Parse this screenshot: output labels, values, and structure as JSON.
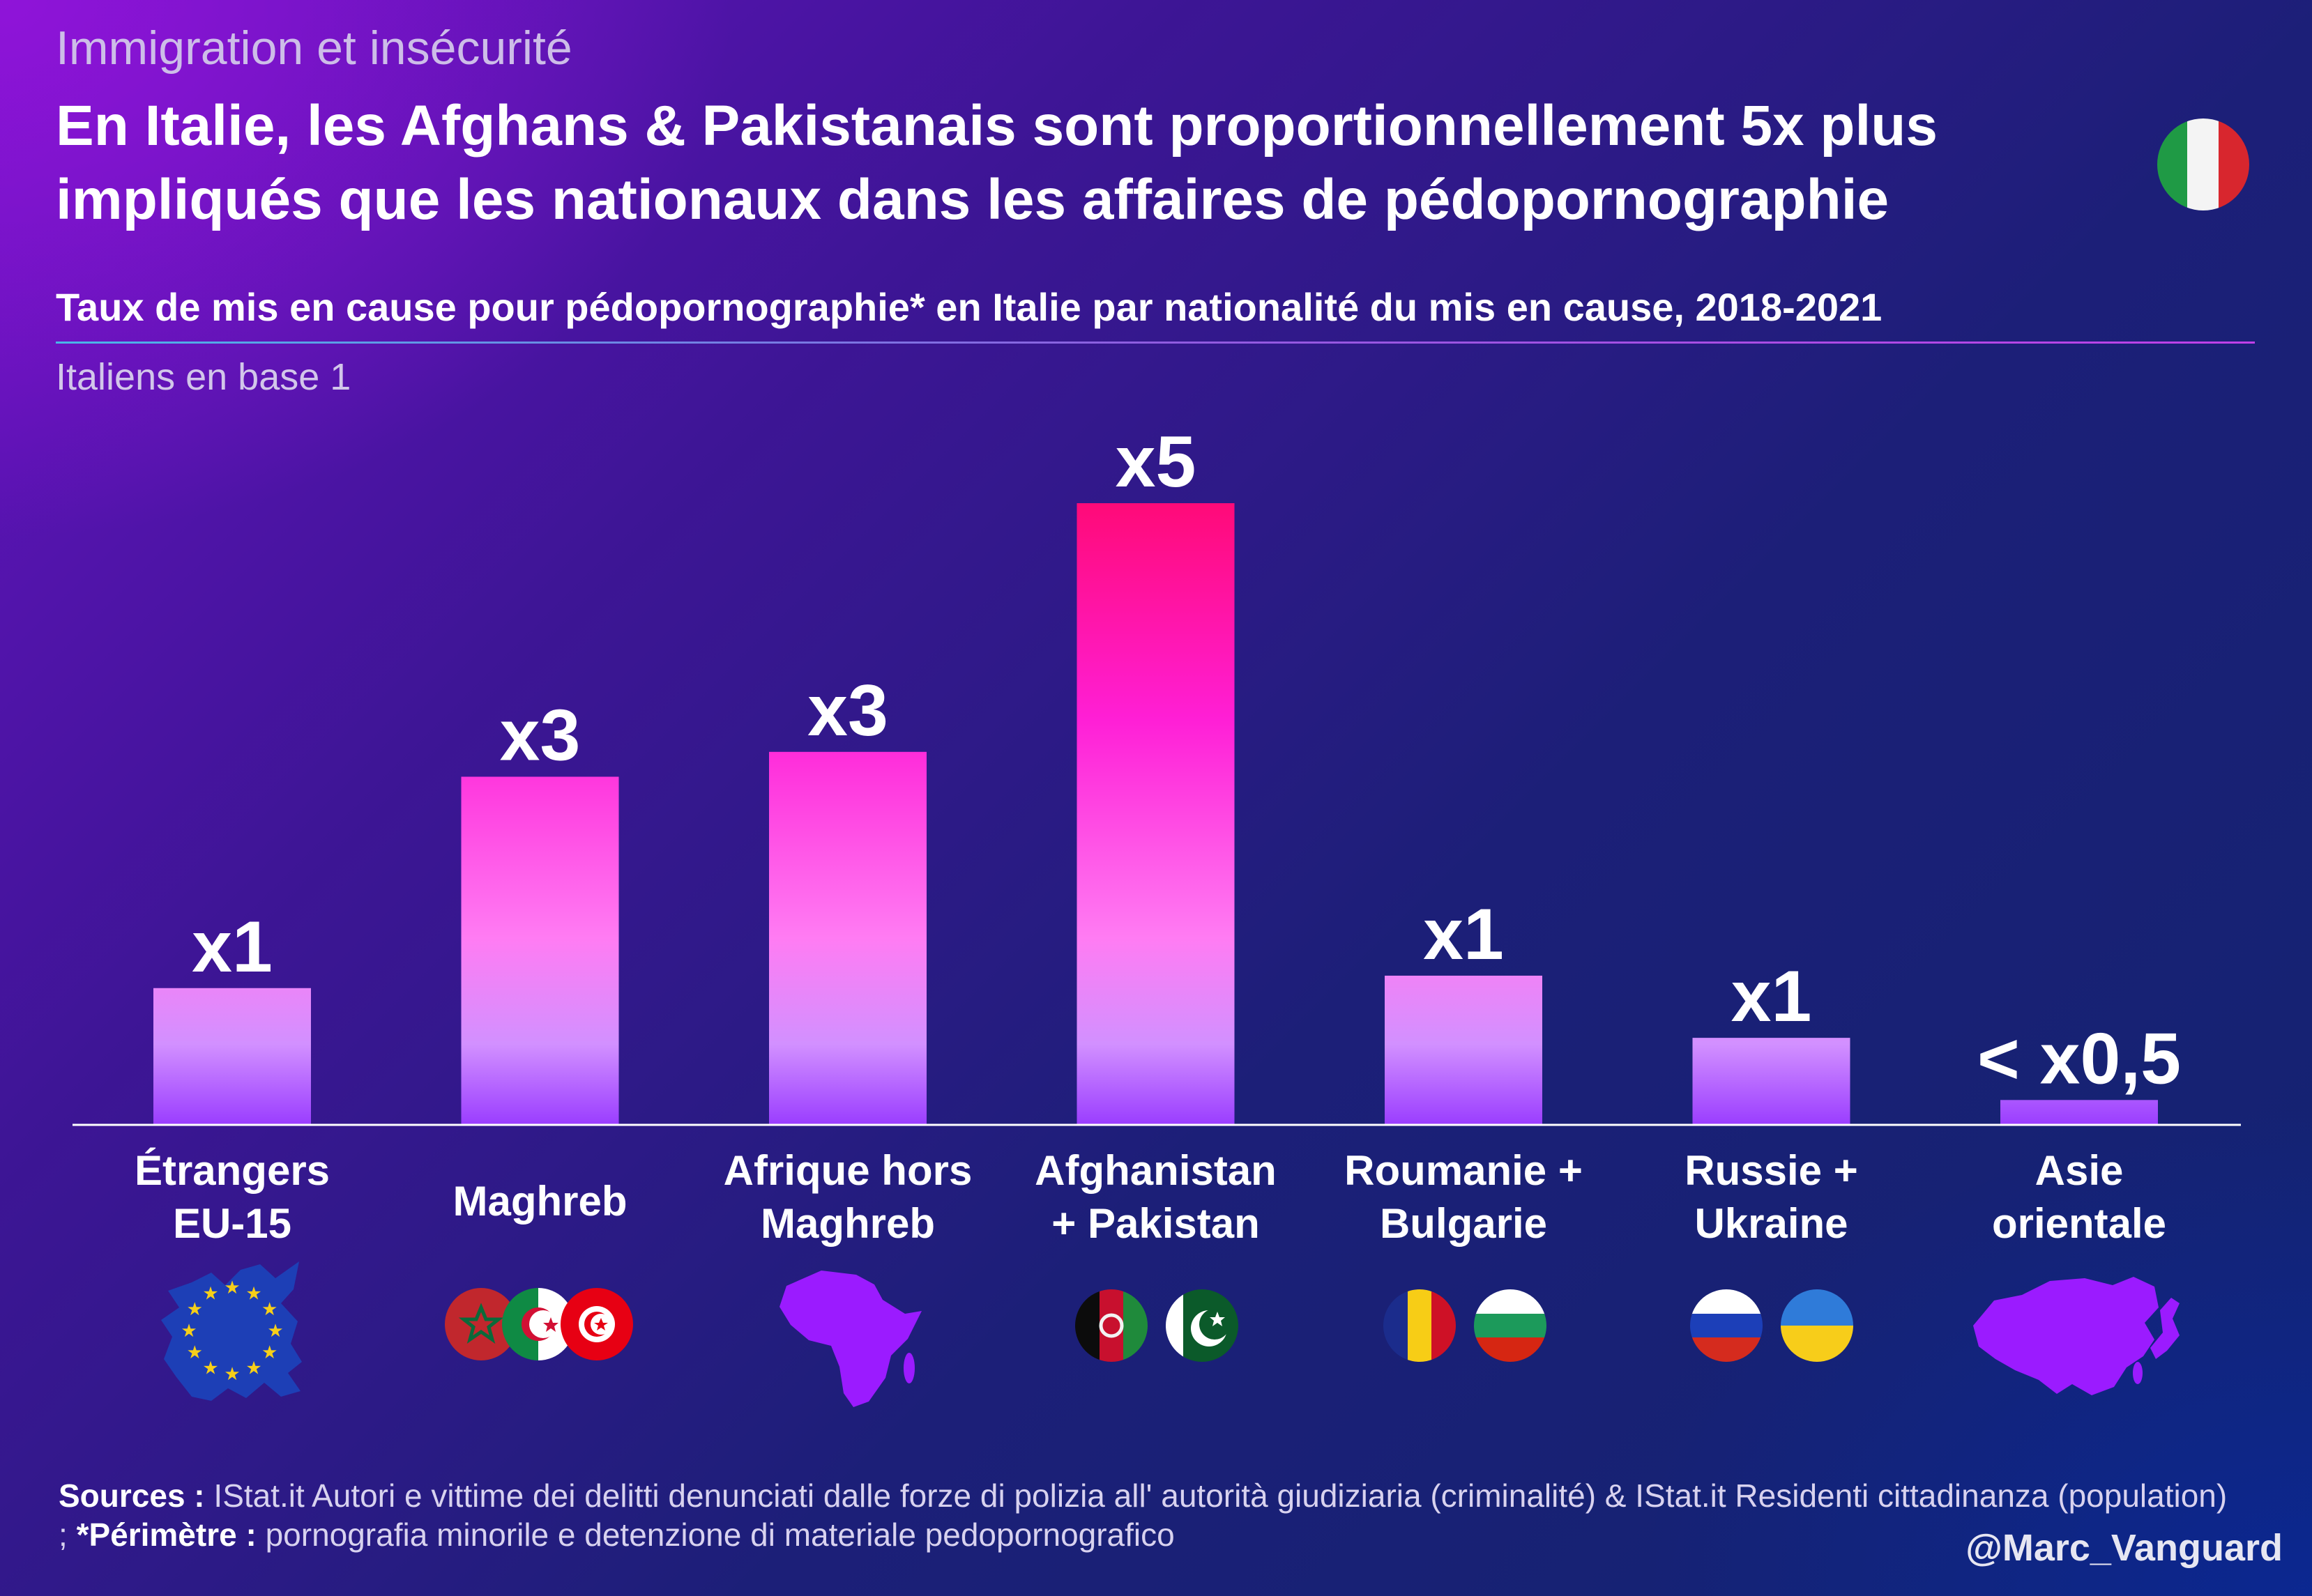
{
  "kicker": "Immigration et insécurité",
  "headline": {
    "line1": "En Italie, les Afghans & Pakistanais sont proportionnellement 5x plus",
    "line2": "impliqués que les nationaux dans les affaires de pédopornographie"
  },
  "colors": {
    "bar_top": "#ff0a78",
    "bar_mid": "#ff1fd6",
    "bar_bottom": "#9a3dff",
    "map_icons": "#9b1bff"
  },
  "icons": [
    "italy-flag-icon",
    "eu-map-icon",
    "morocco-flag-icon",
    "algeria-flag-icon",
    "tunisia-flag-icon",
    "africa-map-icon",
    "afghanistan-flag-icon",
    "pakistan-flag-icon",
    "romania-flag-icon",
    "bulgaria-flag-icon",
    "russia-flag-icon",
    "ukraine-flag-icon",
    "east-asia-map-icon"
  ],
  "chart_data": {
    "type": "bar",
    "subtitle": "Taux de mis en cause pour pédopornographie* en Italie par nationalité du mis en cause, 2018-2021",
    "note": "Italiens en base 1",
    "categories": [
      [
        "Étrangers",
        "EU-15"
      ],
      [
        "Maghreb"
      ],
      [
        "Afrique hors",
        "Maghreb"
      ],
      [
        "Afghanistan",
        "+ Pakistan"
      ],
      [
        "Roumanie +",
        "Bulgarie"
      ],
      [
        "Russie +",
        "Ukraine"
      ],
      [
        "Asie",
        "orientale"
      ]
    ],
    "values": [
      1.1,
      2.8,
      3.0,
      5.0,
      1.2,
      0.7,
      0.2
    ],
    "data_labels": [
      "x1",
      "x3",
      "x3",
      "x5",
      "x1",
      "x1",
      "< x0,5"
    ],
    "ylim": [
      0,
      5.2
    ],
    "grid": false,
    "legend": "none"
  },
  "footer": {
    "sources_label": "Sources :",
    "sources_text": "IStat.it Autori e vittime dei delitti denunciati dalle forze di polizia all' autorità giudiziaria (criminalité) & IStat.it Residenti cittadinanza (population) ;",
    "perimetre_label": "*Périmètre :",
    "perimetre_text": "pornografia minorile e detenzione di materiale pedopornografico",
    "handle": "@Marc_Vanguard"
  }
}
